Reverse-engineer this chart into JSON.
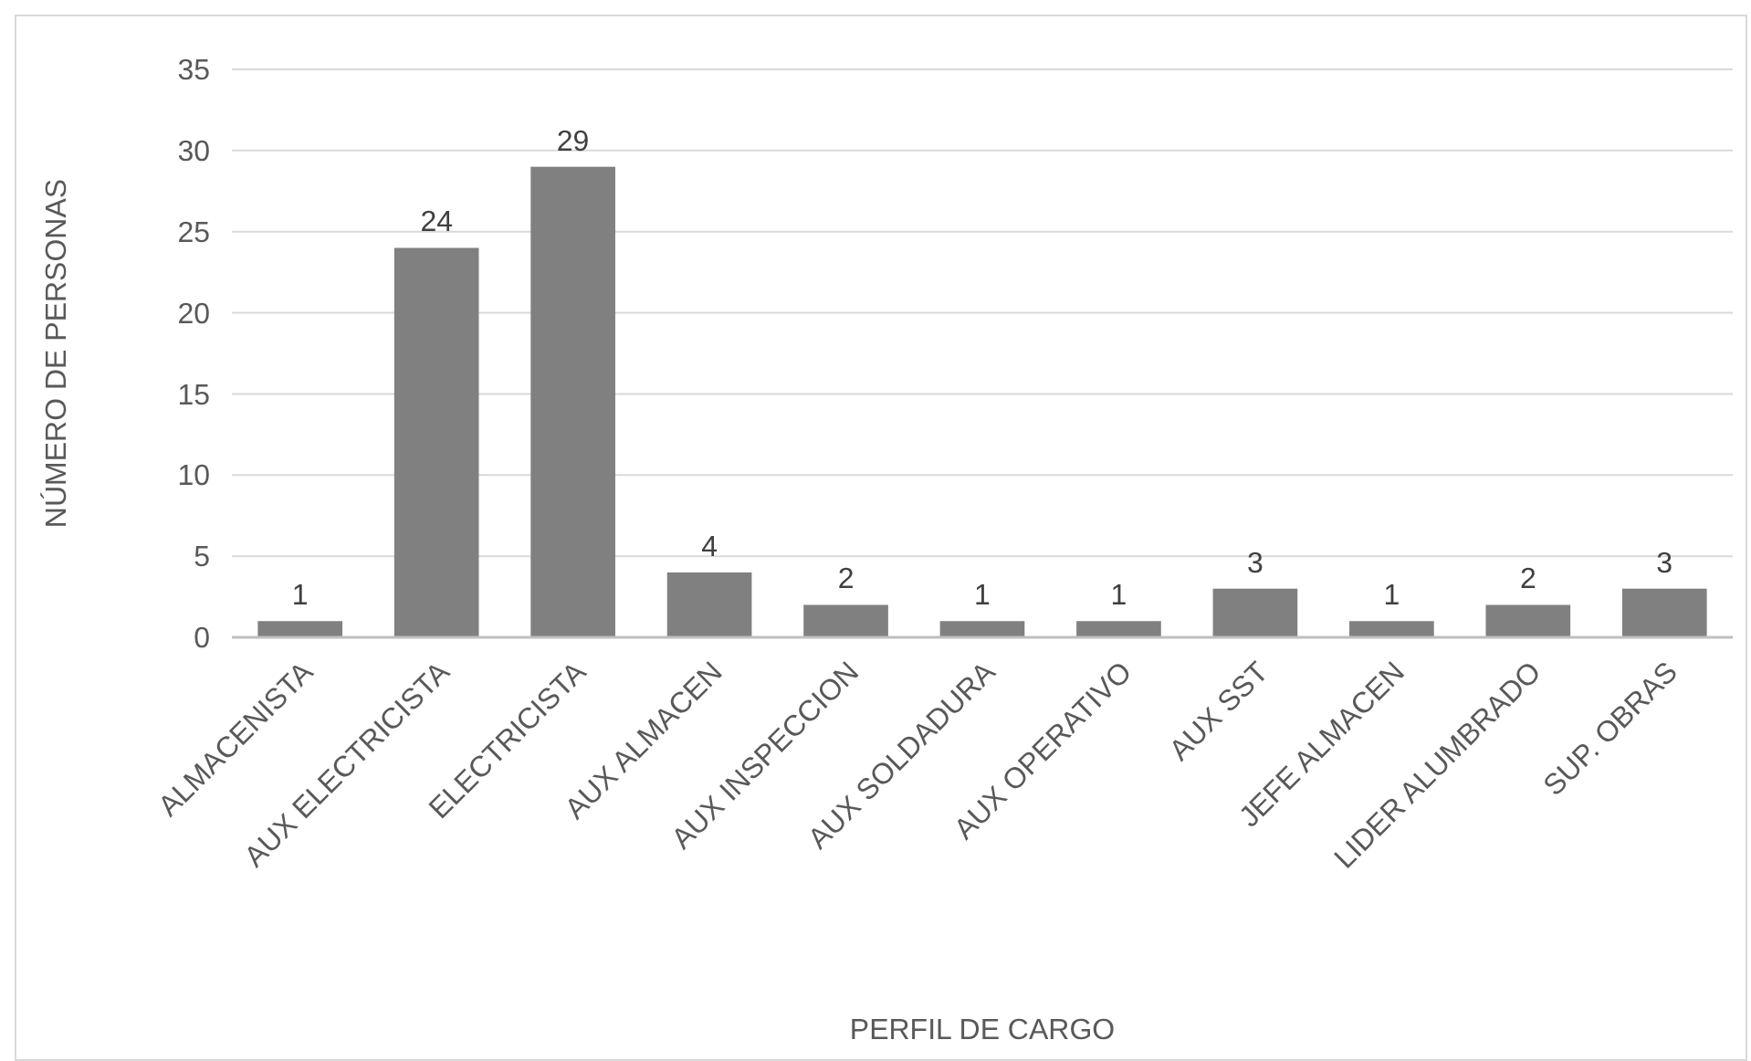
{
  "chart_data": {
    "type": "bar",
    "xlabel": "PERFIL DE CARGO",
    "ylabel": "NÚMERO DE PERSONAS",
    "categories": [
      "ALMACENISTA",
      "AUX ELECTRICISTA",
      "ELECTRICISTA",
      "AUX ALMACEN",
      "AUX INSPECCION",
      "AUX SOLDADURA",
      "AUX OPERATIVO",
      "AUX SST",
      "JEFE ALMACEN",
      "LIDER ALUMBRADO",
      "SUP. OBRAS"
    ],
    "values": [
      1,
      24,
      29,
      4,
      2,
      1,
      1,
      3,
      1,
      2,
      3
    ],
    "color": "#808080",
    "ylim": [
      0,
      35
    ],
    "yticks": [
      0,
      5,
      10,
      15,
      20,
      25,
      30,
      35
    ],
    "grid": "y",
    "data_labels": true
  }
}
